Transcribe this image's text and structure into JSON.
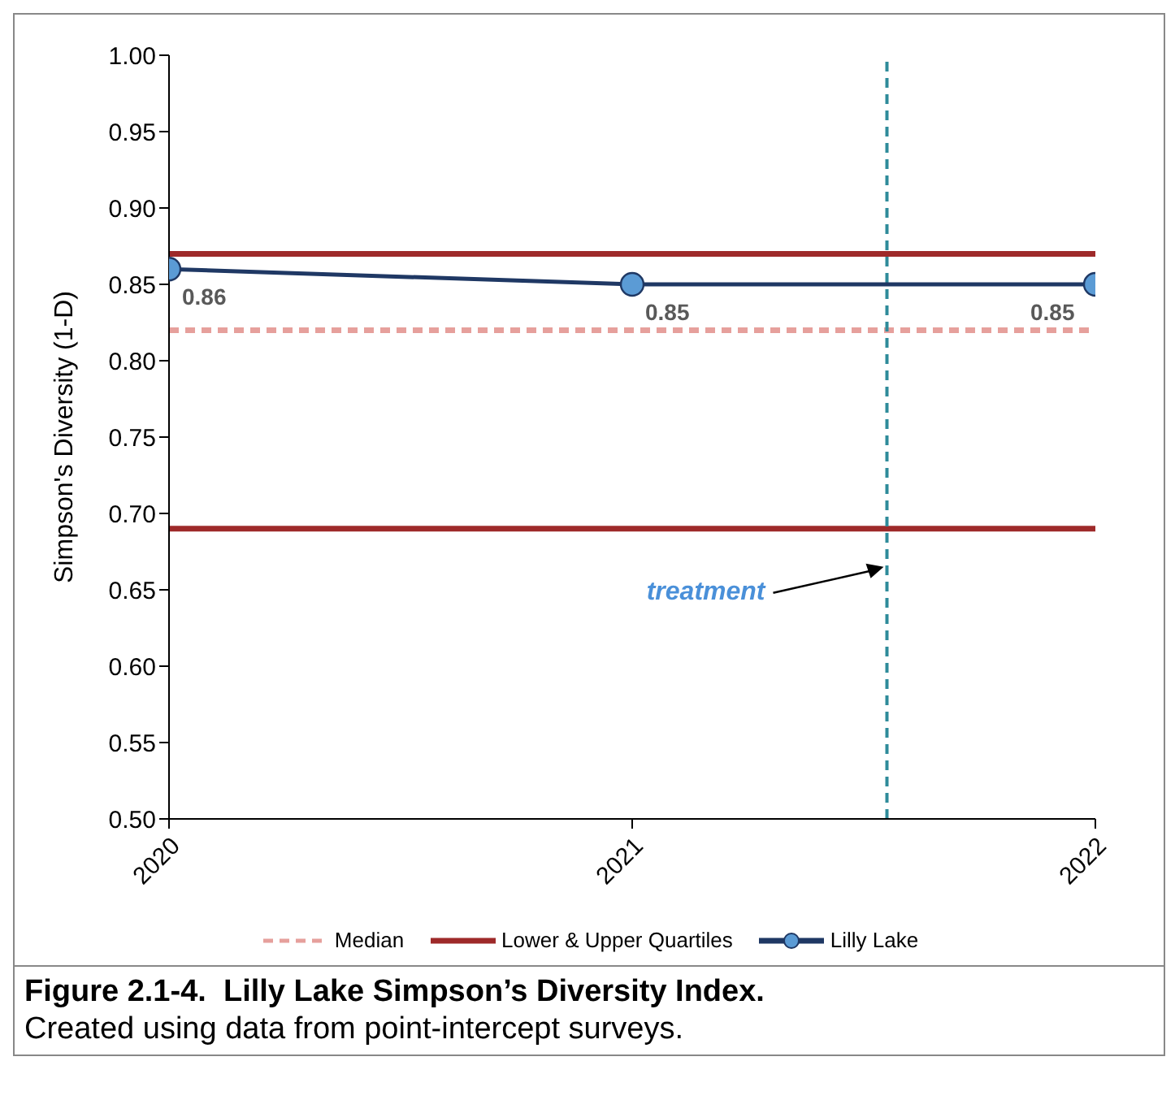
{
  "chart_data": {
    "type": "line",
    "title": "Figure 2.1-4.  Lilly Lake Simpson’s Diversity Index.",
    "subtitle": "Created using data from point-intercept surveys.",
    "ylabel": "Simpson's Diversity (1-D)",
    "x": [
      2020,
      2021,
      2022
    ],
    "series": [
      {
        "name": "Lilly Lake",
        "color": "#1f3864",
        "values": [
          0.86,
          0.85,
          0.85
        ]
      }
    ],
    "data_labels": true,
    "marker": "circle",
    "line_style": "solid",
    "xlim": [
      2020,
      2022
    ],
    "xticks": [
      2020,
      2021,
      2022
    ],
    "ylim": [
      0.5,
      1.0
    ],
    "yticks": [
      {
        "value": 0.5,
        "label": "0.50"
      },
      {
        "value": 0.55,
        "label": "0.55"
      },
      {
        "value": 0.6,
        "label": "0.60"
      },
      {
        "value": 0.65,
        "label": "0.65"
      },
      {
        "value": 0.7,
        "label": "0.70"
      },
      {
        "value": 0.75,
        "label": "0.75"
      },
      {
        "value": 0.8,
        "label": "0.80"
      },
      {
        "value": 0.85,
        "label": "0.85"
      },
      {
        "value": 0.9,
        "label": "0.90"
      },
      {
        "value": 0.95,
        "label": "0.95"
      },
      {
        "value": 1.0,
        "label": "1.00"
      }
    ],
    "ref_lines": [
      {
        "axis": "y",
        "value": 0.82,
        "label": "Median",
        "color": "#e6a09c",
        "line_style": "dashed"
      },
      {
        "axis": "y",
        "value": 0.87,
        "label": "Lower & Upper Quartiles",
        "color": "#9e2a2a",
        "line_style": "solid"
      },
      {
        "axis": "y",
        "value": 0.69,
        "label": null,
        "color": "#9e2a2a",
        "line_style": "solid"
      },
      {
        "axis": "x",
        "value": 2021.55,
        "label": null,
        "color": "#2e8b9a",
        "line_style": "dashed"
      }
    ],
    "annotations": [
      {
        "text": "treatment",
        "x": 2021.55,
        "y": 0.665
      }
    ],
    "legend": "bottom"
  }
}
